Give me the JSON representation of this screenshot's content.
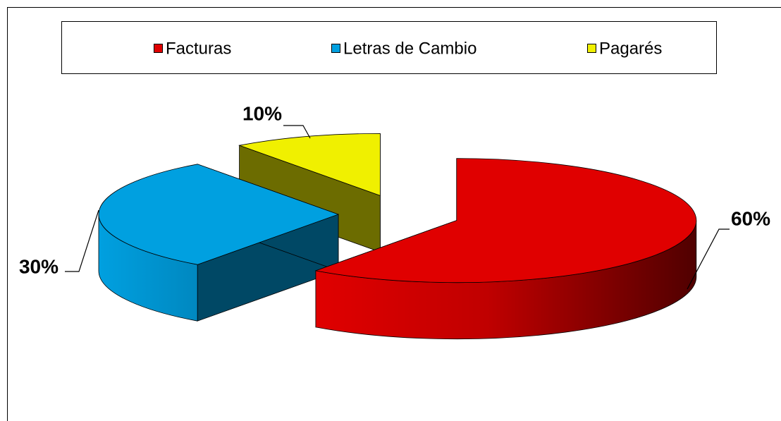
{
  "chart_data": {
    "type": "pie",
    "categories": [
      "Facturas",
      "Letras de Cambio",
      "Pagarés"
    ],
    "values": [
      60,
      30,
      10
    ],
    "value_labels": [
      "60%",
      "30%",
      "10%"
    ],
    "colors": [
      "#e00000",
      "#00a0e0",
      "#f0f000"
    ],
    "legend": "top"
  }
}
